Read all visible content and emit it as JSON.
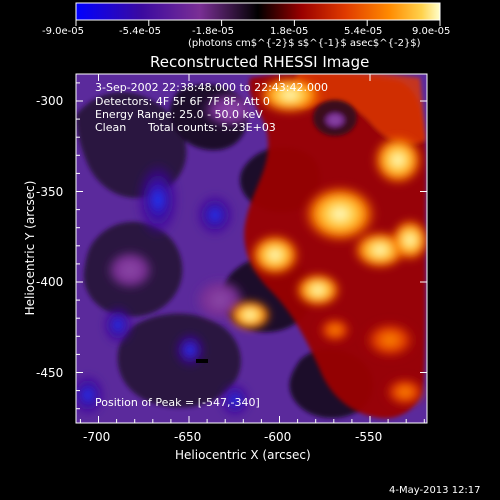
{
  "plot": {
    "title": "Reconstructed RHESSI Image",
    "subtitle": "3-Sep-2002 22:38:48.000 to 22:43:42.000",
    "detectors_line": "Detectors: 4F 5F 6F 7F 8F, Att 0",
    "energy_line": "Energy Range: 25.0 - 50.0 keV",
    "clean_label": "Clean",
    "total_counts_label": "Total counts: 5.23E+03",
    "peak_label": "Position of Peak = [-547,-340]",
    "footer_timestamp": "4-May-2013 12:17"
  },
  "colorbar": {
    "tick_labels": [
      "-9.0e-05",
      "-5.4e-05",
      "-1.8e-05",
      "1.8e-05",
      "5.4e-05",
      "9.0e-05"
    ],
    "unit_label": "(photons cm$^{-2}$ s$^{-1}$ asec$^{-2}$)"
  },
  "axes": {
    "x_label": "Heliocentric X (arcsec)",
    "y_label": "Heliocentric Y (arcsec)",
    "x_ticks": [
      "-700",
      "-650",
      "-600",
      "-550"
    ],
    "y_ticks": [
      "-300",
      "-350",
      "-400",
      "-450"
    ]
  },
  "chart_data": {
    "type": "heatmap",
    "title": "Reconstructed RHESSI Image",
    "xlabel": "Heliocentric X (arcsec)",
    "ylabel": "Heliocentric Y (arcsec)",
    "xlim": [
      -713,
      -519
    ],
    "ylim": [
      -478,
      -285
    ],
    "x_ticks": [
      -700,
      -650,
      -600,
      -550
    ],
    "y_ticks": [
      -300,
      -350,
      -400,
      -450
    ],
    "colorbar_range": [
      -9e-05,
      9e-05
    ],
    "colorbar_ticks": [
      -9e-05,
      -5.4e-05,
      -1.8e-05,
      1.8e-05,
      5.4e-05,
      9e-05
    ],
    "peak_position": [
      -547,
      -340
    ],
    "colormap": [
      "#0000ff",
      "#3b0aa0",
      "#7a2f95",
      "#000000",
      "#9a0000",
      "#e03a00",
      "#ff8a00",
      "#ffd24c",
      "#ffffcc"
    ]
  }
}
